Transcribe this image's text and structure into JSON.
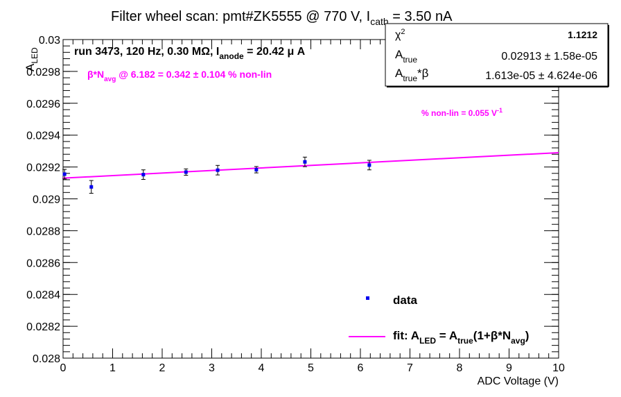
{
  "chart_data": {
    "type": "scatter",
    "title": {
      "prefix": "Filter wheel scan: pmt#ZK5555 @   770 V, I",
      "sub": "cath",
      "suffix": " = 3.50 nA"
    },
    "xlabel": "ADC Voltage (V)",
    "ylabel": {
      "main": "A",
      "sub": "LED"
    },
    "xlim": [
      0,
      10
    ],
    "ylim": [
      0.028,
      0.03
    ],
    "x_ticks": [
      {
        "v": 0,
        "label": "0"
      },
      {
        "v": 1,
        "label": "1"
      },
      {
        "v": 2,
        "label": "2"
      },
      {
        "v": 3,
        "label": "3"
      },
      {
        "v": 4,
        "label": "4"
      },
      {
        "v": 5,
        "label": "5"
      },
      {
        "v": 6,
        "label": "6"
      },
      {
        "v": 7,
        "label": "7"
      },
      {
        "v": 8,
        "label": "8"
      },
      {
        "v": 9,
        "label": "9"
      },
      {
        "v": 10,
        "label": "10"
      }
    ],
    "y_ticks": [
      {
        "v": 0.028,
        "label": "0.028"
      },
      {
        "v": 0.0282,
        "label": "0.0282"
      },
      {
        "v": 0.0284,
        "label": "0.0284"
      },
      {
        "v": 0.0286,
        "label": "0.0286"
      },
      {
        "v": 0.0288,
        "label": "0.0288"
      },
      {
        "v": 0.029,
        "label": "0.029"
      },
      {
        "v": 0.0292,
        "label": "0.0292"
      },
      {
        "v": 0.0294,
        "label": "0.0294"
      },
      {
        "v": 0.0296,
        "label": "0.0296"
      },
      {
        "v": 0.0298,
        "label": "0.0298"
      },
      {
        "v": 0.03,
        "label": "0.03"
      }
    ],
    "grid": false,
    "data_points": [
      {
        "x": 0.03,
        "y": 0.029155,
        "err": 3e-05
      },
      {
        "x": 0.57,
        "y": 0.029075,
        "err": 4e-05
      },
      {
        "x": 1.62,
        "y": 0.029152,
        "err": 3e-05
      },
      {
        "x": 2.48,
        "y": 0.029168,
        "err": 2e-05
      },
      {
        "x": 3.12,
        "y": 0.02918,
        "err": 3e-05
      },
      {
        "x": 3.9,
        "y": 0.029183,
        "err": 2e-05
      },
      {
        "x": 4.88,
        "y": 0.029232,
        "err": 3e-05
      },
      {
        "x": 6.18,
        "y": 0.029212,
        "err": 3e-05
      }
    ],
    "fit_line": {
      "x": [
        0,
        10
      ],
      "y": [
        0.02913,
        0.02929
      ],
      "color": "#ff00ff"
    },
    "point_color": "#0000ee",
    "annotations": {
      "run_info": {
        "text": "run 3473, 120 Hz, 0.30 MΩ, I",
        "sub": "anode",
        "suffix": " = 20.42 μ A"
      },
      "beta_line": {
        "pre": "β*N",
        "sub": "avg",
        "post": " @ 6.182 = 0.342 ± 0.104 % non-lin"
      },
      "nonlin": {
        "text": "% non-lin = 0.055 V",
        "sup": "-1"
      }
    },
    "stats_box": {
      "placement": "top-right",
      "rows": [
        {
          "label": "χ",
          "sup": "2",
          "value": "1.1212"
        },
        {
          "label": "A",
          "sub": "true",
          "value": "0.02913 ± 1.58e-05"
        },
        {
          "label": "A",
          "sub": "true",
          "after": "*β",
          "value": "1.613e-05 ± 4.624e-06"
        }
      ]
    },
    "legend": {
      "placement": "bottom-right",
      "entries": [
        {
          "kind": "marker",
          "label": "data"
        },
        {
          "kind": "line",
          "label_pre": "fit: A",
          "sub1": "LED",
          "mid": " = A",
          "sub2": "true",
          "post": "(1+β*N",
          "sub3": "avg",
          "end": ")"
        }
      ]
    }
  }
}
